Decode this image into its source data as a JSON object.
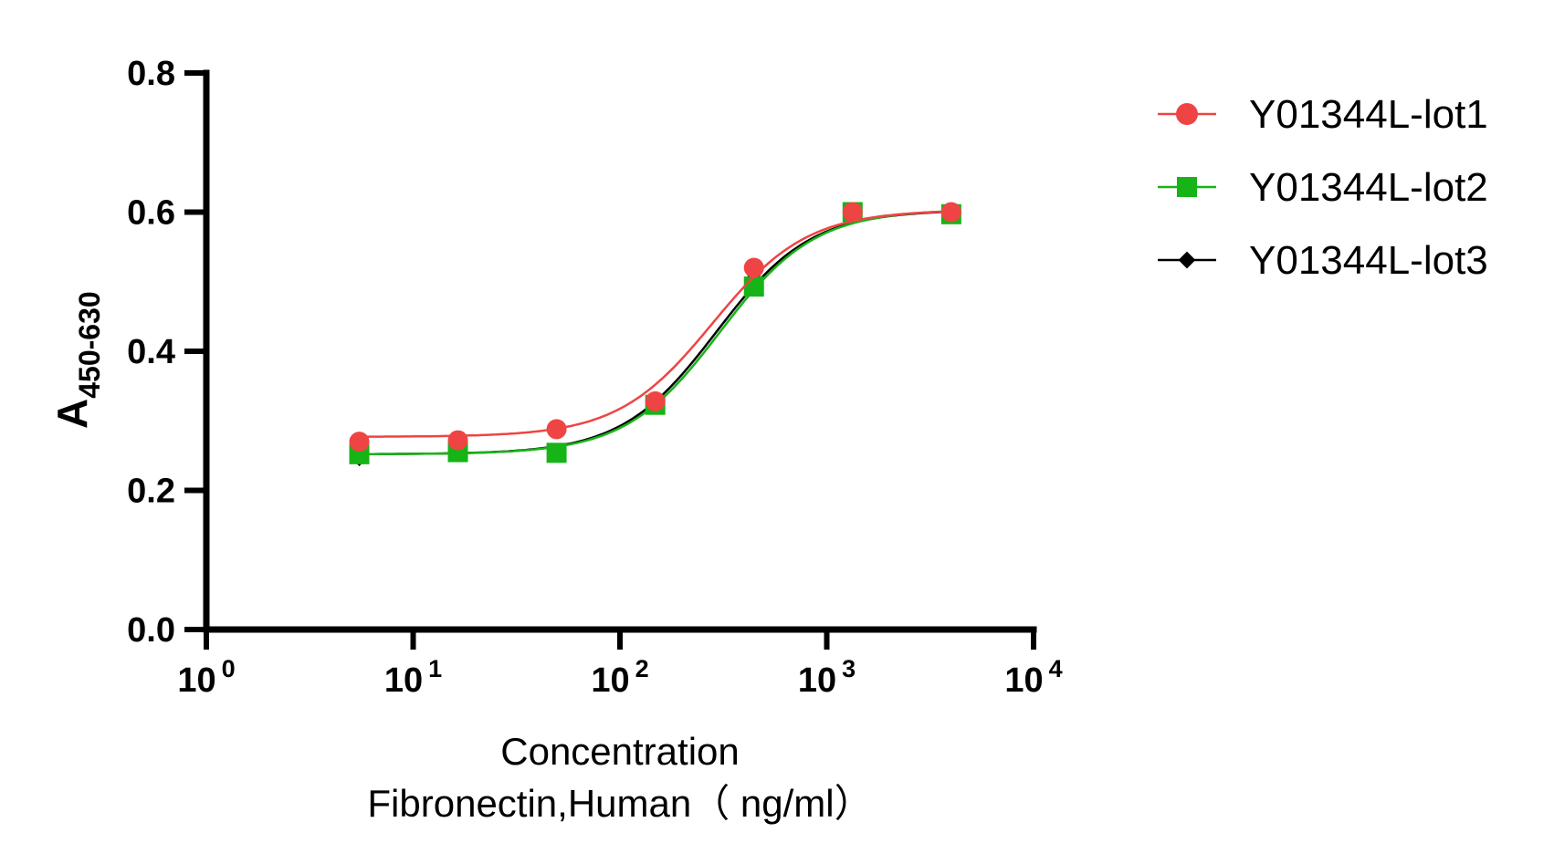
{
  "chart_data": {
    "type": "line",
    "title": "",
    "xscale": "log",
    "xlim": [
      1,
      10000
    ],
    "ylim": [
      0,
      0.8
    ],
    "x_ticks": [
      {
        "base": "10",
        "exp": "0"
      },
      {
        "base": "10",
        "exp": "1"
      },
      {
        "base": "10",
        "exp": "2"
      },
      {
        "base": "10",
        "exp": "3"
      },
      {
        "base": "10",
        "exp": "4"
      }
    ],
    "y_ticks": [
      "0.0",
      "0.2",
      "0.4",
      "0.6",
      "0.8"
    ],
    "xlabel_line1": "Concentration",
    "xlabel_line2": "Fibronectin,Human（ ng/ml）",
    "ylabel_main": "A",
    "ylabel_sub": "450-630",
    "x": [
      5.49,
      16.46,
      49.38,
      148.15,
      444.44,
      1333.33,
      4000
    ],
    "series": [
      {
        "name": "Y01344L-lot1",
        "marker": "circle",
        "color": "#ef4444",
        "values": [
          0.27,
          0.272,
          0.288,
          0.328,
          0.52,
          0.6,
          0.6
        ],
        "fit": {
          "bottom": 0.277,
          "top": 0.603,
          "ec50": 280,
          "hill": 1.9
        }
      },
      {
        "name": "Y01344L-lot2",
        "marker": "square",
        "color": "#16b416",
        "values": [
          0.252,
          0.255,
          0.254,
          0.323,
          0.493,
          0.6,
          0.597
        ],
        "fit": {
          "bottom": 0.252,
          "top": 0.604,
          "ec50": 305,
          "hill": 1.9
        }
      },
      {
        "name": "Y01344L-lot3",
        "marker": "diamond",
        "color": "#000000",
        "values": [
          0.247,
          0.255,
          0.254,
          0.325,
          0.505,
          0.6,
          0.6
        ],
        "fit": {
          "bottom": 0.252,
          "top": 0.603,
          "ec50": 292,
          "hill": 1.9
        }
      }
    ]
  }
}
